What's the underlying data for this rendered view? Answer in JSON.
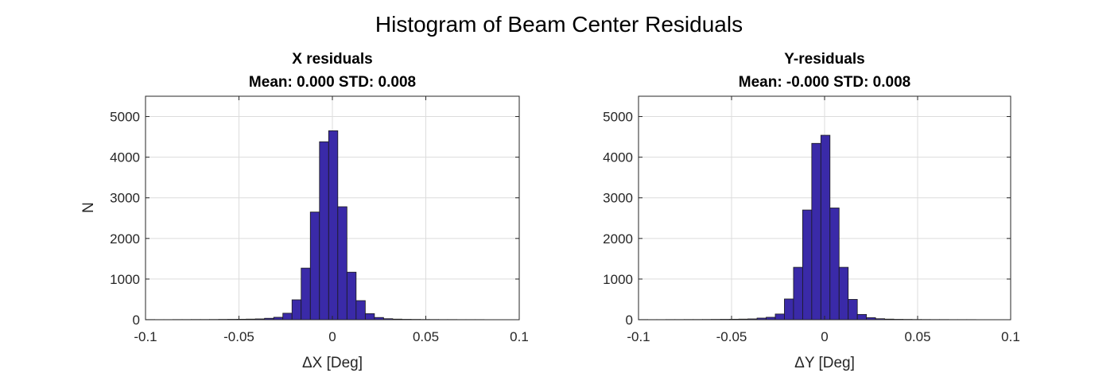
{
  "figure_title": "Histogram of Beam Center Residuals",
  "chart_data": [
    {
      "type": "bar",
      "title_line1": "X residuals",
      "title_line2": "Mean: 0.000 STD: 0.008",
      "xlabel": "ΔX [Deg]",
      "ylabel": "N",
      "xlim": [
        -0.1,
        0.1
      ],
      "ylim": [
        0,
        5500
      ],
      "xticks": [
        -0.1,
        -0.05,
        0,
        0.05,
        0.1
      ],
      "xtick_labels": [
        "-0.1",
        "-0.05",
        "0",
        "0.05",
        "0.1"
      ],
      "yticks": [
        0,
        1000,
        2000,
        3000,
        4000,
        5000
      ],
      "ytick_labels": [
        "0",
        "1000",
        "2000",
        "3000",
        "4000",
        "5000"
      ],
      "grid": true,
      "bin_edges": [
        -0.1,
        -0.0951,
        -0.0902,
        -0.0853,
        -0.0804,
        -0.0755,
        -0.0706,
        -0.0657,
        -0.0608,
        -0.0559,
        -0.051,
        -0.0461,
        -0.0412,
        -0.0363,
        -0.0314,
        -0.0265,
        -0.0216,
        -0.0167,
        -0.0118,
        -0.0069,
        -0.002,
        0.0029,
        0.0078,
        0.0127,
        0.0176,
        0.0225,
        0.0274,
        0.0323,
        0.0372,
        0.0421,
        0.047,
        0.0519,
        0.0568,
        0.0617,
        0.0666,
        0.0715,
        0.0764,
        0.0813,
        0.0862,
        0.0911,
        0.096,
        0.1
      ],
      "counts": [
        4,
        3,
        3,
        4,
        4,
        5,
        5,
        6,
        8,
        10,
        12,
        15,
        20,
        35,
        60,
        160,
        490,
        1270,
        2650,
        4380,
        4650,
        2780,
        1170,
        470,
        150,
        55,
        25,
        15,
        10,
        8,
        6,
        5,
        4,
        4,
        3,
        3,
        3,
        2,
        2,
        2,
        2
      ]
    },
    {
      "type": "bar",
      "title_line1": "Y-residuals",
      "title_line2": "Mean: -0.000 STD: 0.008",
      "xlabel": "ΔY [Deg]",
      "ylabel": "",
      "xlim": [
        -0.1,
        0.1
      ],
      "ylim": [
        0,
        5500
      ],
      "xticks": [
        -0.1,
        -0.05,
        0,
        0.05,
        0.1
      ],
      "xtick_labels": [
        "-0.1",
        "-0.05",
        "0",
        "0.05",
        "0.1"
      ],
      "yticks": [
        0,
        1000,
        2000,
        3000,
        4000,
        5000
      ],
      "ytick_labels": [
        "0",
        "1000",
        "2000",
        "3000",
        "4000",
        "5000"
      ],
      "grid": true,
      "bin_edges": [
        -0.1,
        -0.0951,
        -0.0902,
        -0.0853,
        -0.0804,
        -0.0755,
        -0.0706,
        -0.0657,
        -0.0608,
        -0.0559,
        -0.051,
        -0.0461,
        -0.0412,
        -0.0363,
        -0.0314,
        -0.0265,
        -0.0216,
        -0.0167,
        -0.0118,
        -0.0069,
        -0.002,
        0.0029,
        0.0078,
        0.0127,
        0.0176,
        0.0225,
        0.0274,
        0.0323,
        0.0372,
        0.0421,
        0.047,
        0.0519,
        0.0568,
        0.0617,
        0.0666,
        0.0715,
        0.0764,
        0.0813,
        0.0862,
        0.0911,
        0.096,
        0.1
      ],
      "counts": [
        4,
        3,
        3,
        4,
        4,
        5,
        5,
        6,
        8,
        10,
        12,
        15,
        20,
        40,
        60,
        140,
        510,
        1290,
        2700,
        4340,
        4540,
        2750,
        1290,
        500,
        130,
        50,
        25,
        15,
        10,
        8,
        6,
        5,
        4,
        4,
        3,
        3,
        3,
        2,
        2,
        2,
        2
      ]
    }
  ]
}
